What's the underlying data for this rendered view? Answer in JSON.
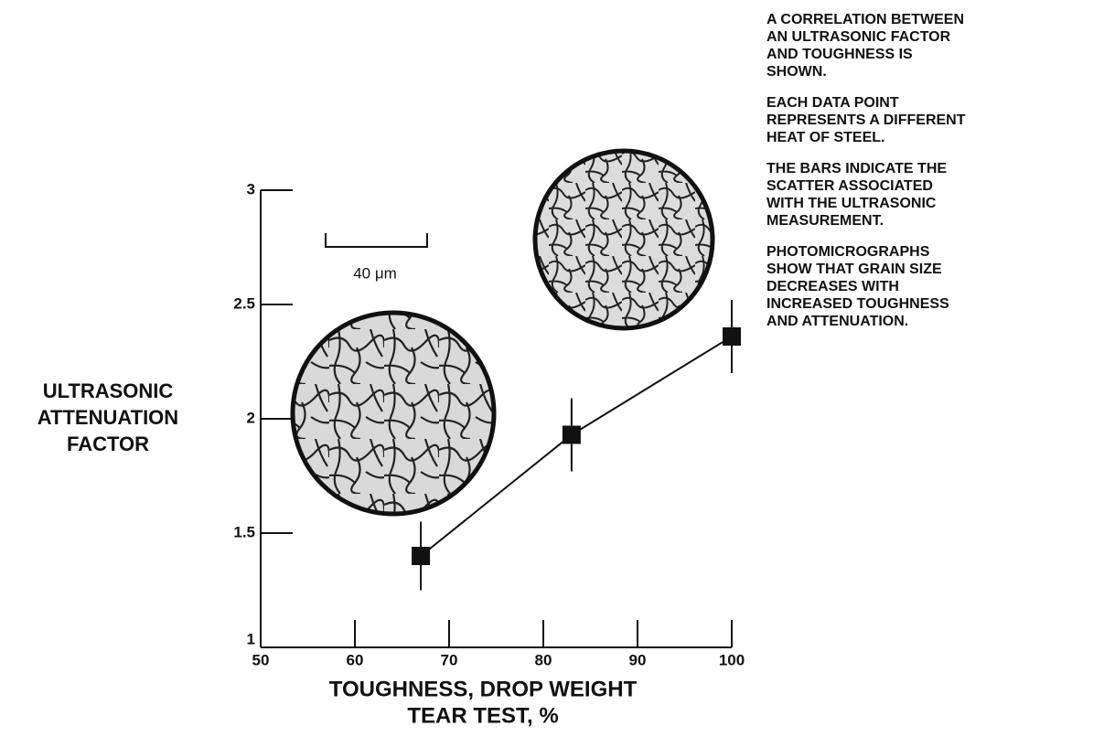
{
  "chart_data": {
    "type": "scatter",
    "x": [
      67,
      83,
      100
    ],
    "series": [
      {
        "color": "#111111",
        "values": [
          1.4,
          1.93,
          2.36
        ],
        "errors": [
          0.15,
          0.16,
          0.16
        ]
      }
    ],
    "connect": true,
    "xlim": [
      50,
      100
    ],
    "ylim": [
      1,
      3
    ],
    "xticks": [
      50,
      60,
      70,
      80,
      90,
      100
    ],
    "yticks": [
      1,
      1.5,
      2,
      2.5,
      3
    ],
    "x_label": [
      "TOUGHNESS, DROP WEIGHT",
      "TEAR TEST, %"
    ],
    "y_label": [
      "ULTRASONIC",
      "ATTENUATION",
      "FACTOR"
    ],
    "scale_bar": "40 μm",
    "notes": [
      [
        "A CORRELATION BETWEEN",
        "AN ULTRASONIC FACTOR",
        "AND TOUGHNESS IS",
        "SHOWN."
      ],
      [
        "EACH DATA POINT",
        "REPRESENTS A DIFFERENT",
        "HEAT OF STEEL."
      ],
      [
        "THE BARS INDICATE THE",
        "SCATTER ASSOCIATED",
        "WITH THE ULTRASONIC",
        "MEASUREMENT."
      ],
      [
        "PHOTOMICROGRAPHS",
        "SHOW THAT GRAIN SIZE",
        "DECREASES WITH",
        "INCREASED TOUGHNESS",
        "AND ATTENUATION."
      ]
    ]
  }
}
